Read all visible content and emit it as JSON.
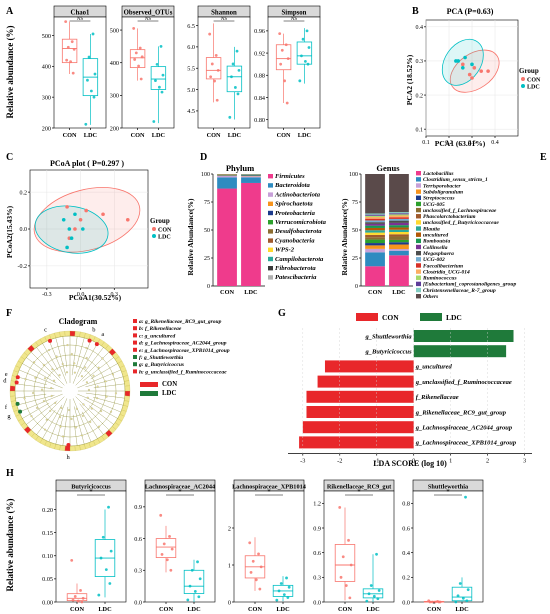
{
  "colors": {
    "con": "#f8766d",
    "ldc": "#00bfc4",
    "strip_bg": "#d9d9d9",
    "lefse_con": "#e8272a",
    "lefse_ldc": "#1f7a3a"
  },
  "panel_letters": [
    "A",
    "B",
    "C",
    "D",
    "E",
    "F",
    "G",
    "H"
  ],
  "groups": [
    "CON",
    "LDC"
  ],
  "panelA": {
    "ylabel": "Relative abundance (%)",
    "facets": [
      {
        "title": "Chao1",
        "ns": "NS",
        "ymin": 200,
        "ymax": 560,
        "ticks": [
          200,
          300,
          400,
          500
        ],
        "CON": {
          "q1": 412,
          "med": 458,
          "q3": 488,
          "lo": 375,
          "hi": 545,
          "pts": [
            545,
            480,
            462,
            455,
            420,
            415,
            378
          ]
        },
        "LDC": {
          "q1": 305,
          "med": 365,
          "q3": 425,
          "lo": 210,
          "hi": 505,
          "pts": [
            505,
            430,
            375,
            355,
            320,
            300,
            212
          ]
        }
      },
      {
        "title": "Observed_OTUs",
        "ns": "NS",
        "ymin": 200,
        "ymax": 540,
        "ticks": [
          200,
          300,
          400,
          500
        ],
        "CON": {
          "q1": 385,
          "med": 415,
          "q3": 440,
          "lo": 345,
          "hi": 505,
          "pts": [
            505,
            445,
            430,
            418,
            410,
            390,
            350
          ]
        },
        "LDC": {
          "q1": 318,
          "med": 350,
          "q3": 388,
          "lo": 215,
          "hi": 450,
          "pts": [
            450,
            395,
            362,
            345,
            325,
            310,
            220
          ]
        }
      },
      {
        "title": "Shannon",
        "ns": "NS",
        "ymin": 4.1,
        "ymax": 6.7,
        "ticks": [
          4.5,
          5.0,
          5.5,
          6.0,
          6.5
        ],
        "CON": {
          "q1": 5.25,
          "med": 5.45,
          "q3": 5.75,
          "lo": 4.7,
          "hi": 6.55,
          "pts": [
            6.3,
            5.8,
            5.6,
            5.45,
            5.3,
            5.2,
            4.75
          ]
        },
        "LDC": {
          "q1": 4.95,
          "med": 5.3,
          "q3": 5.55,
          "lo": 4.3,
          "hi": 6.0,
          "pts": [
            5.9,
            5.6,
            5.45,
            5.3,
            5.05,
            4.9,
            4.35
          ]
        }
      },
      {
        "title": "Simpson",
        "ns": "NS",
        "ymin": 0.785,
        "ymax": 0.985,
        "ticks": [
          0.8,
          0.84,
          0.88,
          0.92,
          0.96
        ],
        "CON": {
          "q1": 0.89,
          "med": 0.91,
          "q3": 0.935,
          "lo": 0.83,
          "hi": 0.955,
          "pts": [
            0.955,
            0.935,
            0.925,
            0.91,
            0.9,
            0.87,
            0.83
          ]
        },
        "LDC": {
          "q1": 0.9,
          "med": 0.915,
          "q3": 0.94,
          "lo": 0.865,
          "hi": 0.965,
          "pts": [
            0.96,
            0.945,
            0.93,
            0.915,
            0.905,
            0.9,
            0.87
          ]
        }
      }
    ]
  },
  "panelB": {
    "title": "PCA (P=0.63)",
    "xlabel": "PCA1 (63.01%)",
    "ylabel": "PCA2 (18.52%)",
    "xlim": [
      0.1,
      0.5
    ],
    "ylim": [
      0.08,
      0.42
    ],
    "xticks": [
      0.1,
      0.2,
      0.3,
      0.4
    ],
    "yticks": [
      0.1,
      0.2,
      0.3,
      0.4
    ],
    "legend_title": "Group",
    "CON_pts": [
      [
        0.26,
        0.29
      ],
      [
        0.31,
        0.28
      ],
      [
        0.34,
        0.27
      ],
      [
        0.3,
        0.25
      ],
      [
        0.37,
        0.27
      ],
      [
        0.29,
        0.26
      ]
    ],
    "LDC_pts": [
      [
        0.23,
        0.3
      ],
      [
        0.27,
        0.31
      ],
      [
        0.3,
        0.29
      ],
      [
        0.26,
        0.28
      ],
      [
        0.24,
        0.3
      ]
    ]
  },
  "panelC": {
    "title": "PCoA plot ( P=0.297 )",
    "xlabel": "PCoA1(30.52%)",
    "ylabel": "PCoA2(15.43%)",
    "xlim": [
      -0.45,
      0.6
    ],
    "ylim": [
      -0.32,
      0.32
    ],
    "xticks": [
      -0.3,
      0.0,
      0.3
    ],
    "yticks": [
      -0.2,
      0.0,
      0.2
    ],
    "legend_title": "Group",
    "CON_pts": [
      [
        -0.12,
        0.12
      ],
      [
        0.0,
        0.05
      ],
      [
        0.05,
        0.1
      ],
      [
        -0.05,
        0.0
      ],
      [
        0.2,
        0.08
      ],
      [
        0.42,
        0.05
      ],
      [
        -0.1,
        -0.05
      ]
    ],
    "LDC_pts": [
      [
        -0.15,
        0.05
      ],
      [
        -0.1,
        0.0
      ],
      [
        -0.05,
        0.08
      ],
      [
        0.02,
        0.0
      ],
      [
        -0.08,
        -0.05
      ],
      [
        -0.12,
        -0.1
      ]
    ]
  },
  "panelD": {
    "title": "Phylum",
    "ylabel": "Relative Abundance(%)",
    "yticks": [
      0,
      25,
      50,
      75,
      100
    ],
    "categories": [
      "CON",
      "LDC"
    ],
    "series": [
      {
        "name": "Firmicutes",
        "color": "#ef3b8c",
        "values": [
          87,
          92
        ]
      },
      {
        "name": "Bacteroidota",
        "color": "#2e8bc0",
        "values": [
          10,
          5
        ]
      },
      {
        "name": "Actinobacteriota",
        "color": "#c7a0d8",
        "values": [
          1.2,
          1.0
        ]
      },
      {
        "name": "Spirochaetota",
        "color": "#f7941d",
        "values": [
          0.3,
          0.3
        ]
      },
      {
        "name": "Proteobacteria",
        "color": "#1b3a8c",
        "values": [
          0.4,
          0.5
        ]
      },
      {
        "name": "Verrucomicrobiota",
        "color": "#2ca02c",
        "values": [
          0.3,
          0.3
        ]
      },
      {
        "name": "Desulfobacterota",
        "color": "#8c6d31",
        "values": [
          0.2,
          0.2
        ]
      },
      {
        "name": "Cyanobacteria",
        "color": "#a05a2c",
        "values": [
          0.2,
          0.1
        ]
      },
      {
        "name": "WPS-2",
        "color": "#ffd92f",
        "values": [
          0.1,
          0.1
        ]
      },
      {
        "name": "Campilobacterota",
        "color": "#2ba89a",
        "values": [
          0.1,
          0.1
        ]
      },
      {
        "name": "Fibrobacterota",
        "color": "#3a3a3a",
        "values": [
          0.1,
          0.1
        ]
      },
      {
        "name": "Patescibacteria",
        "color": "#b0b0b0",
        "values": [
          0.1,
          0.3
        ]
      }
    ]
  },
  "panelE": {
    "title": "Genus",
    "ylabel": "Relative Abundance(%)",
    "yticks": [
      0,
      25,
      50,
      75,
      100
    ],
    "categories": [
      "CON",
      "LDC"
    ],
    "series": [
      {
        "name": "Lactobacillus",
        "color": "#ef3b8c",
        "values": [
          17,
          27
        ]
      },
      {
        "name": "Clostridium_sensu_stricto_1",
        "color": "#2e8bc0",
        "values": [
          12,
          4
        ]
      },
      {
        "name": "Terrisporobacter",
        "color": "#c7a0d8",
        "values": [
          3,
          1.5
        ]
      },
      {
        "name": "Subdoligranulum",
        "color": "#f7941d",
        "values": [
          3,
          4
        ]
      },
      {
        "name": "Streptococcus",
        "color": "#1b3a8c",
        "values": [
          2,
          2
        ]
      },
      {
        "name": "UCG-005",
        "color": "#2ca02c",
        "values": [
          3,
          2
        ]
      },
      {
        "name": "unclassified_f_Lachnospiraceae",
        "color": "#8c6d31",
        "values": [
          2,
          3
        ]
      },
      {
        "name": "Phascolarctobacterium",
        "color": "#a05a2c",
        "values": [
          2,
          2
        ]
      },
      {
        "name": "unclassified_f_Butyricicoccaceae",
        "color": "#ffd92f",
        "values": [
          2,
          2
        ]
      },
      {
        "name": "Blautia",
        "color": "#2ba89a",
        "values": [
          2,
          2
        ]
      },
      {
        "name": "uncultured",
        "color": "#b35806",
        "values": [
          2,
          2
        ]
      },
      {
        "name": "Romboutsia",
        "color": "#1a9850",
        "values": [
          2,
          2
        ]
      },
      {
        "name": "Collinsella",
        "color": "#7b3294",
        "values": [
          1.5,
          2
        ]
      },
      {
        "name": "Megasphaera",
        "color": "#4d4d4d",
        "values": [
          1.5,
          2
        ]
      },
      {
        "name": "UCG-002",
        "color": "#74add1",
        "values": [
          1.5,
          1.5
        ]
      },
      {
        "name": "Faecalibacterium",
        "color": "#d73027",
        "values": [
          1.5,
          1.5
        ]
      },
      {
        "name": "Clostridia_UCG-014",
        "color": "#fdae61",
        "values": [
          1.5,
          1.5
        ]
      },
      {
        "name": "Ruminococcus",
        "color": "#a6d96a",
        "values": [
          1,
          1
        ]
      },
      {
        "name": "[Eubacterium]_coprostanoligenes_group",
        "color": "#5e3c99",
        "values": [
          1,
          1
        ]
      },
      {
        "name": "Christensenellaceae_R-7_group",
        "color": "#80cdc1",
        "values": [
          1,
          1
        ]
      },
      {
        "name": "Others",
        "color": "#5a4a4a",
        "values": [
          34,
          33.5
        ]
      }
    ]
  },
  "panelF": {
    "title": "Cladogram",
    "legend_items": [
      {
        "text": "a: g_Rikenellaceae_RC9_gut_group",
        "group": "CON"
      },
      {
        "text": "b: f_Rikenellaceae",
        "group": "CON"
      },
      {
        "text": "c: g_uncultured",
        "group": "CON"
      },
      {
        "text": "d: g_Lachnospiraceae_AC2044_group",
        "group": "CON"
      },
      {
        "text": "e: g_Lachnospiraceae_XPB1014_group",
        "group": "CON"
      },
      {
        "text": "f: g_Shuttleworthia",
        "group": "LDC"
      },
      {
        "text": "g: g_Butyricicoccus",
        "group": "LDC"
      },
      {
        "text": "h: g_unclassified_f_Ruminococcaceae",
        "group": "CON"
      }
    ],
    "groups": [
      "CON",
      "LDC"
    ],
    "node_letters": [
      "c",
      "b",
      "a",
      "d",
      "e",
      "f",
      "g",
      "h"
    ]
  },
  "panelG": {
    "legend": [
      "CON",
      "LDC"
    ],
    "xlabel": "LDA SCORE (log 10)",
    "xlim": [
      -3.4,
      3.2
    ],
    "xticks": [
      -3,
      -2,
      -1,
      0,
      1,
      2,
      3
    ],
    "bars": [
      {
        "label": "g_Shuttleworthia",
        "value": 2.7,
        "group": "LDC"
      },
      {
        "label": "g_Butyricicoccus",
        "value": 2.5,
        "group": "LDC"
      },
      {
        "label": "g_uncultured",
        "value": -2.4,
        "group": "CON"
      },
      {
        "label": "g_unclassified_f_Ruminococcaceae",
        "value": -2.6,
        "group": "CON"
      },
      {
        "label": "f_Rikenellaceae",
        "value": -2.9,
        "group": "CON"
      },
      {
        "label": "g_Rikenellaceae_RC9_gut_group",
        "value": -2.9,
        "group": "CON"
      },
      {
        "label": "g_Lachnospiraceae_AC2044_group",
        "value": -3.0,
        "group": "CON"
      },
      {
        "label": "g_Lachnospiraceae_XPB1014_group",
        "value": -3.1,
        "group": "CON"
      }
    ]
  },
  "panelH": {
    "ylabel": "Relative abundance (%)",
    "sig": "*",
    "facets": [
      {
        "title": "Butyricicoccus",
        "ymin": 0,
        "ymax": 0.24,
        "ticks": [
          0.0,
          0.05,
          0.1,
          0.15,
          0.2
        ],
        "CON": {
          "q1": 0.003,
          "med": 0.008,
          "q3": 0.018,
          "lo": 0.0,
          "hi": 0.04,
          "pts": [
            0.09,
            0.025,
            0.012,
            0.008,
            0.004,
            0.002,
            0.0
          ]
        },
        "LDC": {
          "q1": 0.055,
          "med": 0.095,
          "q3": 0.135,
          "lo": 0.01,
          "hi": 0.2,
          "pts": [
            0.205,
            0.14,
            0.11,
            0.095,
            0.07,
            0.04,
            0.015
          ]
        }
      },
      {
        "title": "Lachnospiraceae_AC2044",
        "ymin": 0,
        "ymax": 1.05,
        "ticks": [
          0.0,
          0.3,
          0.6,
          0.9
        ],
        "CON": {
          "q1": 0.42,
          "med": 0.52,
          "q3": 0.6,
          "lo": 0.28,
          "hi": 0.72,
          "pts": [
            0.82,
            0.62,
            0.55,
            0.5,
            0.45,
            0.4,
            0.3
          ]
        },
        "LDC": {
          "q1": 0.08,
          "med": 0.15,
          "q3": 0.3,
          "lo": 0.0,
          "hi": 0.4,
          "pts": [
            0.38,
            0.3,
            0.22,
            0.15,
            0.1,
            0.05,
            0.02
          ]
        }
      },
      {
        "title": "Lachnospiraceae_XPB1014",
        "ymin": 0,
        "ymax": 3.0,
        "ticks": [
          0.0,
          1.0,
          2.0
        ],
        "CON": {
          "q1": 0.65,
          "med": 0.95,
          "q3": 1.25,
          "lo": 0.3,
          "hi": 1.75,
          "pts": [
            1.6,
            1.3,
            1.1,
            0.95,
            0.8,
            0.6,
            0.35
          ]
        },
        "LDC": {
          "q1": 0.15,
          "med": 0.3,
          "q3": 0.45,
          "lo": 0.02,
          "hi": 0.7,
          "pts": [
            0.65,
            0.5,
            0.4,
            0.3,
            0.2,
            0.12,
            0.05
          ]
        }
      },
      {
        "title": "Rikenellaceae_RC9_gut",
        "ymin": 0,
        "ymax": 1.35,
        "ticks": [
          0.0,
          0.3,
          0.6,
          0.9,
          1.2
        ],
        "CON": {
          "q1": 0.25,
          "med": 0.45,
          "q3": 0.7,
          "lo": 0.02,
          "hi": 1.15,
          "pts": [
            1.15,
            0.75,
            0.55,
            0.45,
            0.3,
            0.2,
            0.05
          ]
        },
        "LDC": {
          "q1": 0.05,
          "med": 0.1,
          "q3": 0.16,
          "lo": 0.0,
          "hi": 0.58,
          "pts": [
            0.58,
            0.2,
            0.14,
            0.1,
            0.07,
            0.04,
            0.01
          ]
        }
      },
      {
        "title": "Shuttleworthia",
        "ymin": 0,
        "ymax": 0.9,
        "ticks": [
          0.0,
          0.2,
          0.4,
          0.6,
          0.8
        ],
        "CON": {
          "q1": 0.0,
          "med": 0.0,
          "q3": 0.005,
          "lo": 0.0,
          "hi": 0.01,
          "pts": [
            0.01,
            0.005,
            0.0,
            0.0,
            0.0,
            0.0,
            0.0
          ]
        },
        "LDC": {
          "q1": 0.01,
          "med": 0.04,
          "q3": 0.12,
          "lo": 0.0,
          "hi": 0.2,
          "pts": [
            0.85,
            0.15,
            0.1,
            0.05,
            0.03,
            0.01,
            0.0
          ]
        }
      }
    ]
  }
}
